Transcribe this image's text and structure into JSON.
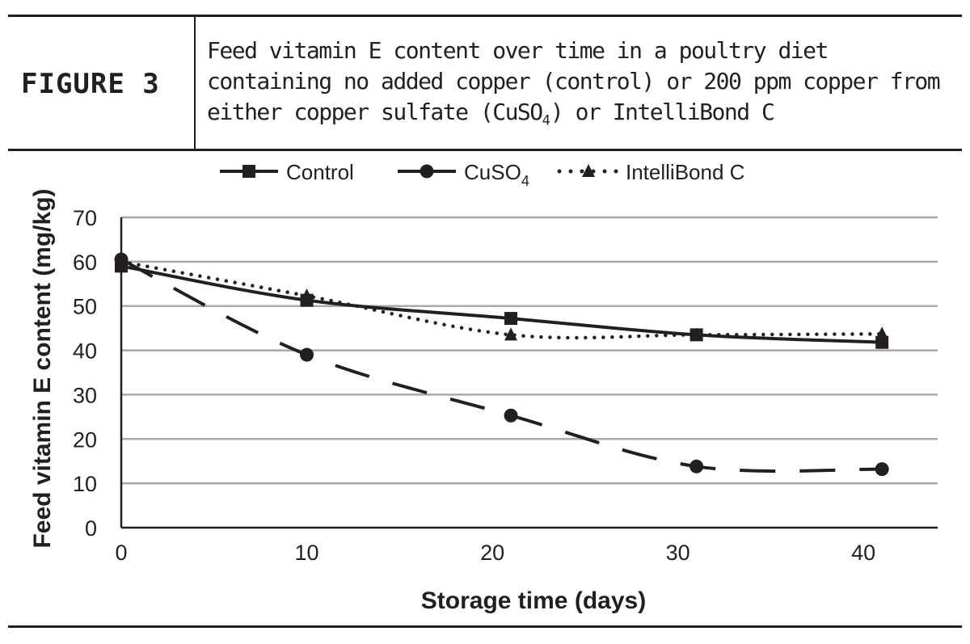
{
  "figure": {
    "label": "FIGURE 3",
    "title_main": "Feed vitamin E content over time in a poultry diet containing no added copper (control) or 200 ppm copper from either copper sulfate (CuSO",
    "title_sub": "4",
    "title_end": ") or IntelliBond C"
  },
  "chart_data": {
    "type": "line",
    "xlabel": "Storage time (days)",
    "ylabel": "Feed vitamin E content (mg/kg)",
    "xlim": [
      0,
      44
    ],
    "ylim": [
      0,
      70
    ],
    "xticks": [
      0,
      10,
      20,
      30,
      40
    ],
    "yticks": [
      0,
      10,
      20,
      30,
      40,
      50,
      60,
      70
    ],
    "grid": "horizontal",
    "legend_position": "top",
    "colors": {
      "ink": "#231f20",
      "grid": "#a7a9ac"
    },
    "series": [
      {
        "name": "Control",
        "line_style": "solid",
        "marker": "square",
        "x": [
          0,
          10,
          21,
          31,
          41
        ],
        "y": [
          59,
          51.3,
          47.2,
          43.5,
          41.8
        ]
      },
      {
        "name": "CuSO",
        "name_sub": "4",
        "line_style": "dashed",
        "marker": "circle",
        "x": [
          0,
          10,
          21,
          31,
          41
        ],
        "y": [
          60.5,
          39,
          25.3,
          13.8,
          13.2
        ]
      },
      {
        "name": "IntelliBond C",
        "line_style": "dotted",
        "marker": "triangle",
        "x": [
          0,
          10,
          21,
          31,
          41
        ],
        "y": [
          60,
          52.3,
          43.5,
          43.5,
          43.7
        ]
      }
    ]
  }
}
